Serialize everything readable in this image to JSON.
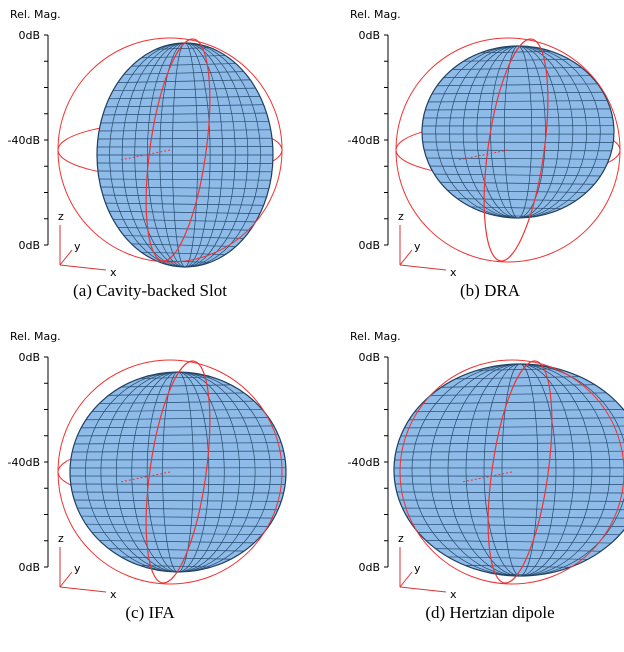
{
  "panels": [
    {
      "axis_title": "Rel. Mag.",
      "ticks": [
        "0dB",
        "-40dB",
        "0dB"
      ],
      "axes": {
        "z": "z",
        "y": "y",
        "x": "x"
      },
      "caption": "(a) Cavity-backed Slot"
    },
    {
      "axis_title": "Rel. Mag.",
      "ticks": [
        "0dB",
        "-40dB",
        "0dB"
      ],
      "axes": {
        "z": "z",
        "y": "y",
        "x": "x"
      },
      "caption": "(b) DRA"
    },
    {
      "axis_title": "Rel. Mag.",
      "ticks": [
        "0dB",
        "-40dB",
        "0dB"
      ],
      "axes": {
        "z": "z",
        "y": "y",
        "x": "x"
      },
      "caption": "(c)  IFA"
    },
    {
      "axis_title": "Rel. Mag.",
      "ticks": [
        "0dB",
        "-40dB",
        "0dB"
      ],
      "axes": {
        "z": "z",
        "y": "y",
        "x": "x"
      },
      "caption": "(d) Hertzian dipole"
    }
  ]
}
